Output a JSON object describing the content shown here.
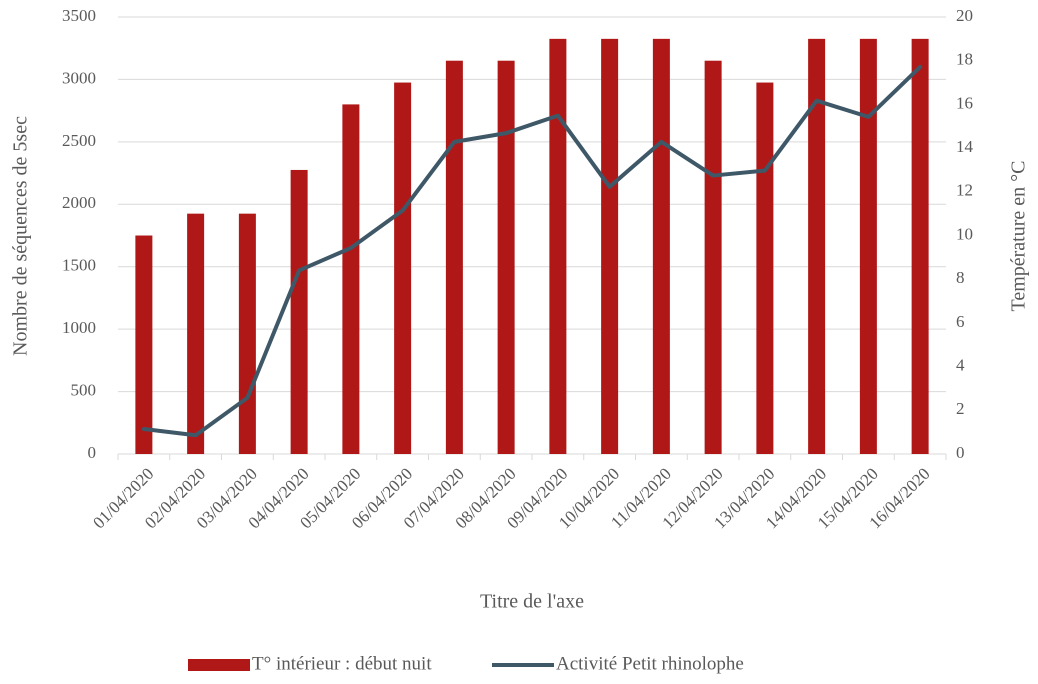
{
  "chart_data": {
    "type": "bar_line",
    "x_label": "Titre de l'axe",
    "y_label": "Nombre de séquences de 5sec",
    "y2_label": "Température en °C",
    "categories": [
      "01/04/2020",
      "02/04/2020",
      "03/04/2020",
      "04/04/2020",
      "05/04/2020",
      "06/04/2020",
      "07/04/2020",
      "08/04/2020",
      "09/04/2020",
      "10/04/2020",
      "11/04/2020",
      "12/04/2020",
      "13/04/2020",
      "14/04/2020",
      "15/04/2020",
      "16/04/2020"
    ],
    "series": [
      {
        "name": "T° intérieur : début nuit",
        "type": "bar",
        "axis": "y2",
        "color": "#b01818",
        "values": [
          10,
          11,
          11,
          13,
          16,
          17,
          18,
          18,
          19,
          19,
          19,
          18,
          17,
          19,
          19,
          19
        ]
      },
      {
        "name": "Activité Petit rhinolophe",
        "type": "line",
        "axis": "y",
        "color": "#3e5868",
        "values": [
          200,
          150,
          450,
          1470,
          1650,
          1950,
          2500,
          2570,
          2710,
          2140,
          2500,
          2230,
          2270,
          2830,
          2700,
          3100
        ]
      }
    ],
    "ylim": [
      0,
      3500
    ],
    "yticks": [
      0,
      500,
      1000,
      1500,
      2000,
      2500,
      3000,
      3500
    ],
    "y2lim": [
      0,
      20
    ],
    "y2ticks": [
      0,
      2,
      4,
      6,
      8,
      10,
      12,
      14,
      16,
      18,
      20
    ],
    "grid": true,
    "legend": "bottom"
  }
}
